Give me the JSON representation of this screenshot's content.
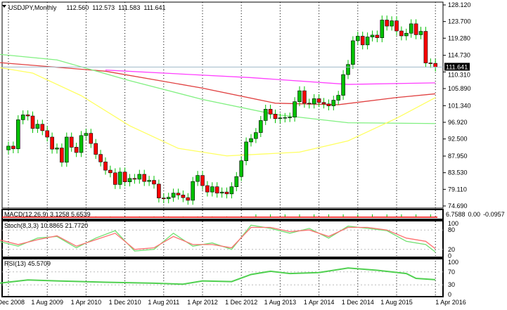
{
  "header": {
    "symbol": "USDJPY,Monthly",
    "open": "112.560",
    "high": "112.573",
    "low": "111.583",
    "close": "111.641"
  },
  "current_price_label": "111.641",
  "colors": {
    "bull": "#00c000",
    "bear": "#ff0000",
    "outline": "#000000",
    "ma_magenta": "#ff40ff",
    "ma_red": "#e04040",
    "ma_green": "#80f080",
    "ma_yellow": "#ffff60",
    "stoch_main": "#70e070",
    "stoch_signal": "#ff7070",
    "rsi": "#50d050",
    "price_line": "#a0b8c8"
  },
  "price_axis": [
    "128.120",
    "123.700",
    "119.280",
    "114.730",
    "110.310",
    "105.890",
    "101.340",
    "96.920",
    "92.500",
    "87.950",
    "83.530",
    "79.110",
    "74.690"
  ],
  "macd": {
    "label": "MACD(12,26,9) 3.1258 5.6539",
    "axis": [
      "6.7588",
      "0.00",
      "-0.0957"
    ]
  },
  "stoch": {
    "label": "Stoch(8,3,3) 10.8865 21.7720",
    "axis": [
      "100",
      "80",
      "20",
      "0"
    ]
  },
  "rsi": {
    "label": "RSI(13) 45.5709",
    "axis": [
      "100",
      "70",
      "30",
      "0"
    ]
  },
  "time_axis": [
    "1 Dec 2008",
    "1 Aug 2009",
    "1 Apr 2010",
    "1 Dec 2010",
    "1 Aug 2011",
    "1 Apr 2012",
    "1 Dec 2012",
    "1 Aug 2013",
    "1 Apr 2014",
    "1 Dec 2014",
    "1 Aug 2015",
    "1 Apr 2016"
  ],
  "chart_data": {
    "type": "candlestick",
    "start": "Dec 2008",
    "interval": "month",
    "ylim": [
      74.69,
      128.12
    ],
    "closes": [
      90.6,
      89.9,
      97.6,
      98.9,
      98.6,
      95.3,
      96.4,
      94.7,
      93.0,
      89.8,
      90.1,
      86.3,
      93.0,
      90.3,
      88.9,
      93.4,
      94.0,
      91.3,
      88.4,
      86.4,
      84.2,
      83.5,
      80.4,
      83.7,
      81.1,
      82.0,
      81.8,
      83.1,
      81.2,
      81.5,
      80.5,
      76.8,
      76.6,
      77.0,
      78.1,
      77.6,
      76.9,
      76.2,
      81.2,
      82.8,
      80.1,
      78.4,
      79.8,
      78.1,
      78.4,
      77.9,
      79.8,
      82.5,
      86.7,
      91.7,
      92.6,
      94.2,
      97.4,
      100.4,
      99.1,
      97.9,
      98.1,
      98.2,
      98.3,
      102.4,
      105.3,
      102.0,
      101.8,
      103.2,
      102.2,
      101.8,
      101.3,
      102.8,
      104.1,
      109.6,
      112.3,
      118.6,
      119.8,
      117.5,
      119.6,
      120.1,
      119.4,
      124.1,
      122.5,
      123.9,
      121.2,
      119.9,
      120.6,
      123.1,
      120.2,
      121.1,
      112.7,
      112.6,
      111.6
    ],
    "ma_lines": [
      {
        "color": "ma_magenta",
        "points": [
          [
            20,
            110.8
          ],
          [
            50,
            108.8
          ],
          [
            70,
            107.0
          ],
          [
            88,
            107.4
          ]
        ]
      },
      {
        "color": "ma_red",
        "points": [
          [
            -2,
            112.8
          ],
          [
            20,
            110.5
          ],
          [
            40,
            106.0
          ],
          [
            55,
            102.0
          ],
          [
            68,
            101.6
          ],
          [
            80,
            103.5
          ],
          [
            88,
            104.5
          ]
        ]
      },
      {
        "color": "ma_green",
        "points": [
          [
            -2,
            115.0
          ],
          [
            10,
            113.5
          ],
          [
            25,
            108.0
          ],
          [
            40,
            103.0
          ],
          [
            55,
            99.0
          ],
          [
            70,
            96.8
          ],
          [
            88,
            96.6
          ]
        ]
      },
      {
        "color": "ma_yellow",
        "points": [
          [
            -2,
            111.5
          ],
          [
            5,
            110.0
          ],
          [
            15,
            104.0
          ],
          [
            25,
            96.0
          ],
          [
            35,
            90.0
          ],
          [
            45,
            88.0
          ],
          [
            60,
            89.0
          ],
          [
            70,
            92.0
          ],
          [
            80,
            98.0
          ],
          [
            88,
            103.5
          ]
        ]
      }
    ],
    "stoch_main": [
      [
        -2,
        45
      ],
      [
        2,
        30
      ],
      [
        6,
        55
      ],
      [
        10,
        60
      ],
      [
        14,
        25
      ],
      [
        18,
        55
      ],
      [
        22,
        78
      ],
      [
        26,
        15
      ],
      [
        30,
        20
      ],
      [
        34,
        70
      ],
      [
        38,
        30
      ],
      [
        42,
        40
      ],
      [
        46,
        20
      ],
      [
        50,
        95
      ],
      [
        54,
        85
      ],
      [
        58,
        70
      ],
      [
        62,
        85
      ],
      [
        66,
        55
      ],
      [
        70,
        92
      ],
      [
        74,
        85
      ],
      [
        78,
        78
      ],
      [
        82,
        45
      ],
      [
        86,
        35
      ],
      [
        88,
        12
      ]
    ],
    "stoch_signal": [
      [
        -2,
        50
      ],
      [
        2,
        35
      ],
      [
        6,
        50
      ],
      [
        10,
        62
      ],
      [
        14,
        30
      ],
      [
        18,
        50
      ],
      [
        22,
        70
      ],
      [
        26,
        20
      ],
      [
        30,
        25
      ],
      [
        34,
        60
      ],
      [
        38,
        35
      ],
      [
        42,
        35
      ],
      [
        46,
        25
      ],
      [
        50,
        88
      ],
      [
        54,
        88
      ],
      [
        58,
        75
      ],
      [
        62,
        80
      ],
      [
        66,
        60
      ],
      [
        70,
        88
      ],
      [
        74,
        88
      ],
      [
        78,
        80
      ],
      [
        82,
        55
      ],
      [
        86,
        45
      ],
      [
        88,
        22
      ]
    ],
    "rsi_values": [
      [
        -2,
        35
      ],
      [
        4,
        45
      ],
      [
        10,
        42
      ],
      [
        20,
        38
      ],
      [
        30,
        35
      ],
      [
        36,
        32
      ],
      [
        40,
        42
      ],
      [
        46,
        40
      ],
      [
        50,
        62
      ],
      [
        54,
        72
      ],
      [
        58,
        65
      ],
      [
        64,
        68
      ],
      [
        70,
        82
      ],
      [
        76,
        75
      ],
      [
        82,
        65
      ],
      [
        84,
        50
      ],
      [
        88,
        46
      ]
    ]
  }
}
